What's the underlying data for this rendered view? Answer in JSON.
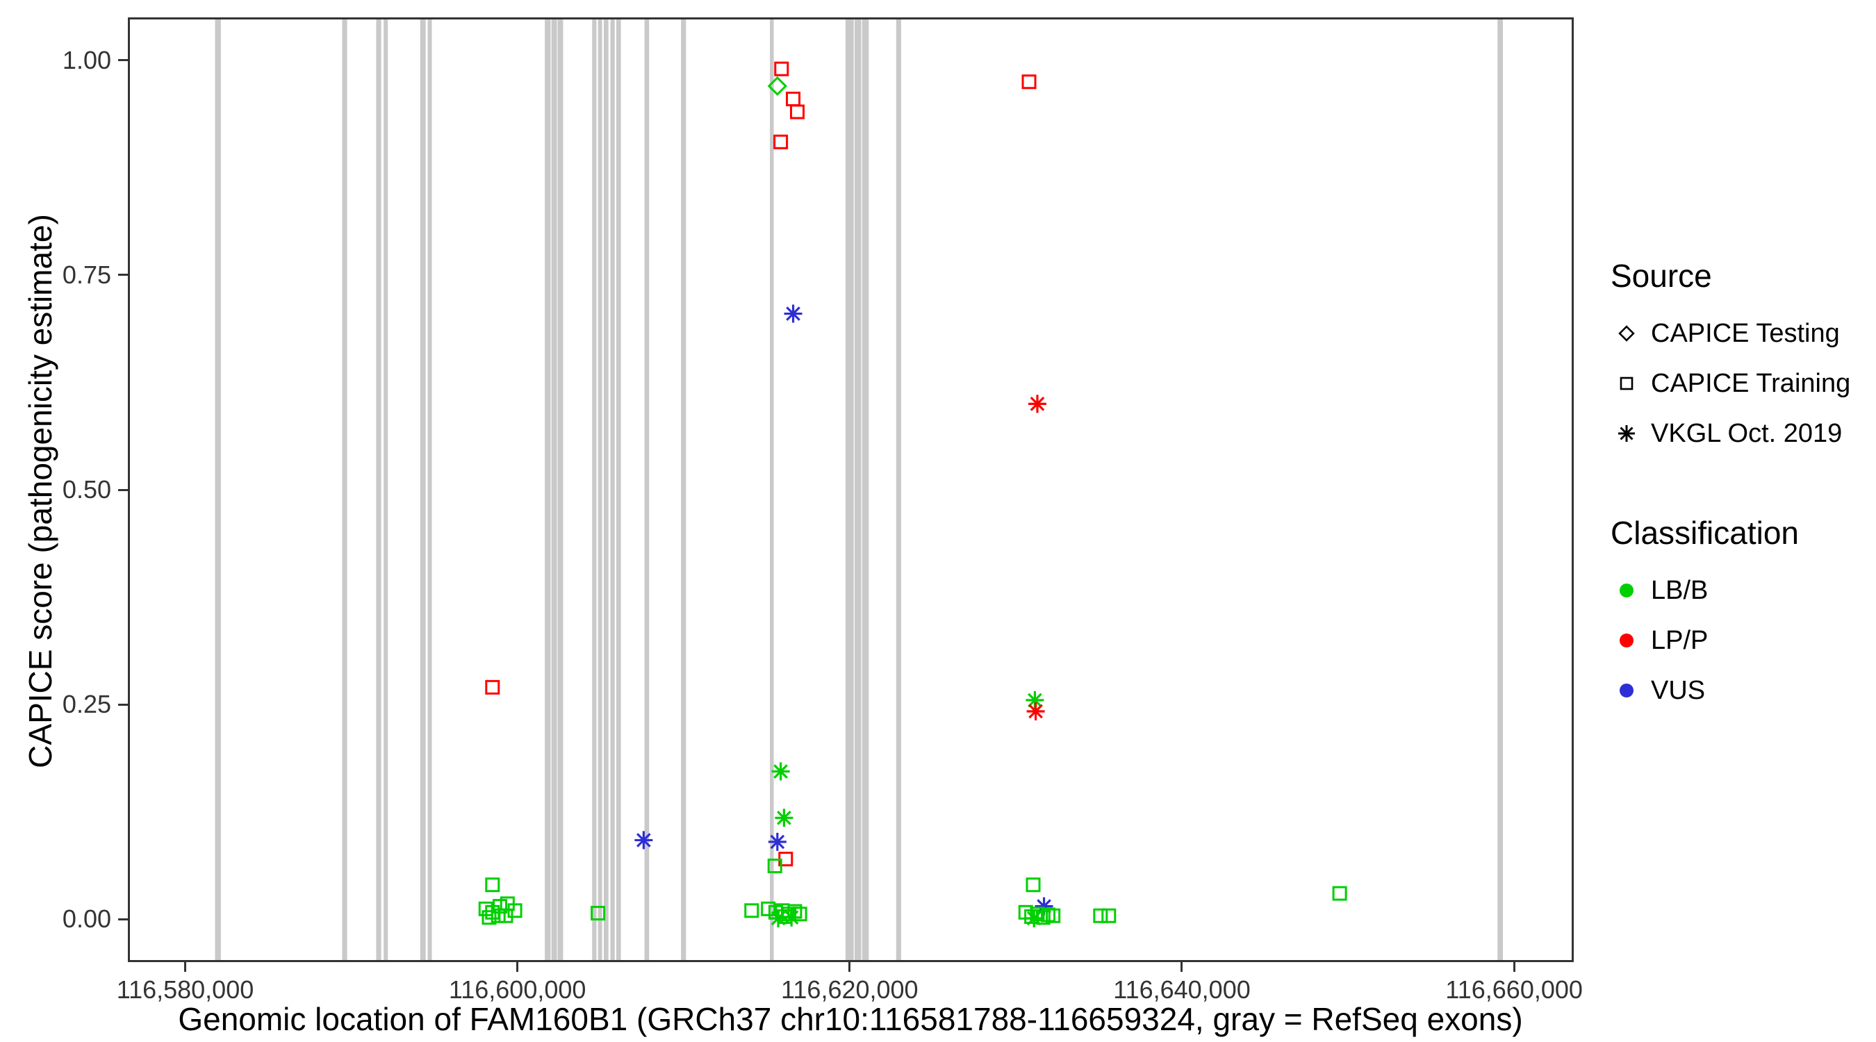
{
  "chart_data": {
    "type": "scatter",
    "title": "",
    "xlabel": "Genomic location of FAM160B1 (GRCh37 chr10:116581788-116659324, gray = RefSeq exons)",
    "ylabel": "CAPICE score (pathogenicity estimate)",
    "xlim": [
      116576550,
      116663590
    ],
    "ylim": [
      -0.05,
      1.05
    ],
    "grid": false,
    "x_ticks": [
      {
        "value": 116580000,
        "label": "116,580,000"
      },
      {
        "value": 116600000,
        "label": "116,600,000"
      },
      {
        "value": 116620000,
        "label": "116,620,000"
      },
      {
        "value": 116640000,
        "label": "116,640,000"
      },
      {
        "value": 116660000,
        "label": "116,660,000"
      }
    ],
    "y_ticks": [
      {
        "value": 0.0,
        "label": "0.00"
      },
      {
        "value": 0.25,
        "label": "0.25"
      },
      {
        "value": 0.5,
        "label": "0.50"
      },
      {
        "value": 0.75,
        "label": "0.75"
      },
      {
        "value": 1.0,
        "label": "1.00"
      }
    ],
    "colors": {
      "LB/B": "#00CF00",
      "LP/P": "#FF0000",
      "VUS": "#2E2ED6",
      "exon": "#C9C9C9",
      "legend_symbol": "#000000",
      "axis": "#333333"
    },
    "exons": [
      {
        "start": 116581800,
        "end": 116582150
      },
      {
        "start": 116589450,
        "end": 116589750
      },
      {
        "start": 116591500,
        "end": 116591800
      },
      {
        "start": 116591950,
        "end": 116592200
      },
      {
        "start": 116594150,
        "end": 116594480
      },
      {
        "start": 116594600,
        "end": 116594850
      },
      {
        "start": 116601650,
        "end": 116602000
      },
      {
        "start": 116602050,
        "end": 116602380
      },
      {
        "start": 116602420,
        "end": 116602750
      },
      {
        "start": 116604500,
        "end": 116604760
      },
      {
        "start": 116604850,
        "end": 116605100
      },
      {
        "start": 116605200,
        "end": 116605480
      },
      {
        "start": 116605600,
        "end": 116605860
      },
      {
        "start": 116605950,
        "end": 116606230
      },
      {
        "start": 116607650,
        "end": 116607930
      },
      {
        "start": 116609850,
        "end": 116610150
      },
      {
        "start": 116615200,
        "end": 116615430
      },
      {
        "start": 116619750,
        "end": 116620250
      },
      {
        "start": 116620300,
        "end": 116620700
      },
      {
        "start": 116620750,
        "end": 116621150
      },
      {
        "start": 116622800,
        "end": 116623100
      },
      {
        "start": 116659000,
        "end": 116659324
      }
    ],
    "points": [
      {
        "x": 116615900,
        "y": 0.99,
        "source": "CAPICE Training",
        "class": "LP/P"
      },
      {
        "x": 116615650,
        "y": 0.97,
        "source": "CAPICE Testing",
        "class": "LB/B"
      },
      {
        "x": 116616600,
        "y": 0.955,
        "source": "CAPICE Training",
        "class": "LP/P"
      },
      {
        "x": 116616850,
        "y": 0.94,
        "source": "CAPICE Training",
        "class": "LP/P"
      },
      {
        "x": 116615850,
        "y": 0.905,
        "source": "CAPICE Training",
        "class": "LP/P"
      },
      {
        "x": 116630800,
        "y": 0.975,
        "source": "CAPICE Training",
        "class": "LP/P"
      },
      {
        "x": 116616600,
        "y": 0.705,
        "source": "VKGL Oct. 2019",
        "class": "VUS"
      },
      {
        "x": 116631300,
        "y": 0.6,
        "source": "VKGL Oct. 2019",
        "class": "LP/P"
      },
      {
        "x": 116598500,
        "y": 0.27,
        "source": "CAPICE Training",
        "class": "LP/P"
      },
      {
        "x": 116631150,
        "y": 0.255,
        "source": "VKGL Oct. 2019",
        "class": "LB/B"
      },
      {
        "x": 116631200,
        "y": 0.242,
        "source": "VKGL Oct. 2019",
        "class": "LP/P"
      },
      {
        "x": 116615850,
        "y": 0.172,
        "source": "VKGL Oct. 2019",
        "class": "LB/B"
      },
      {
        "x": 116616050,
        "y": 0.118,
        "source": "VKGL Oct. 2019",
        "class": "LB/B"
      },
      {
        "x": 116607600,
        "y": 0.092,
        "source": "VKGL Oct. 2019",
        "class": "VUS"
      },
      {
        "x": 116615650,
        "y": 0.09,
        "source": "VKGL Oct. 2019",
        "class": "VUS"
      },
      {
        "x": 116616150,
        "y": 0.07,
        "source": "CAPICE Training",
        "class": "LP/P"
      },
      {
        "x": 116615500,
        "y": 0.062,
        "source": "CAPICE Training",
        "class": "LB/B"
      },
      {
        "x": 116598500,
        "y": 0.04,
        "source": "CAPICE Training",
        "class": "LB/B"
      },
      {
        "x": 116598100,
        "y": 0.012,
        "source": "CAPICE Training",
        "class": "LB/B"
      },
      {
        "x": 116598500,
        "y": 0.008,
        "source": "CAPICE Training",
        "class": "LB/B"
      },
      {
        "x": 116598950,
        "y": 0.015,
        "source": "CAPICE Training",
        "class": "LB/B"
      },
      {
        "x": 116599400,
        "y": 0.018,
        "source": "CAPICE Training",
        "class": "LB/B"
      },
      {
        "x": 116599850,
        "y": 0.01,
        "source": "CAPICE Training",
        "class": "LB/B"
      },
      {
        "x": 116598300,
        "y": 0.002,
        "source": "CAPICE Training",
        "class": "LB/B"
      },
      {
        "x": 116598850,
        "y": 0.004,
        "source": "CAPICE Training",
        "class": "LB/B"
      },
      {
        "x": 116599300,
        "y": 0.004,
        "source": "CAPICE Training",
        "class": "LB/B"
      },
      {
        "x": 116604850,
        "y": 0.007,
        "source": "CAPICE Training",
        "class": "LB/B"
      },
      {
        "x": 116614100,
        "y": 0.01,
        "source": "CAPICE Training",
        "class": "LB/B"
      },
      {
        "x": 116615100,
        "y": 0.012,
        "source": "CAPICE Training",
        "class": "LB/B"
      },
      {
        "x": 116615550,
        "y": 0.008,
        "source": "CAPICE Training",
        "class": "LB/B"
      },
      {
        "x": 116615950,
        "y": 0.01,
        "source": "CAPICE Training",
        "class": "LB/B"
      },
      {
        "x": 116616350,
        "y": 0.006,
        "source": "CAPICE Training",
        "class": "LB/B"
      },
      {
        "x": 116616700,
        "y": 0.009,
        "source": "CAPICE Training",
        "class": "LB/B"
      },
      {
        "x": 116617000,
        "y": 0.006,
        "source": "CAPICE Training",
        "class": "LB/B"
      },
      {
        "x": 116616100,
        "y": 0.003,
        "source": "CAPICE Training",
        "class": "LB/B"
      },
      {
        "x": 116615700,
        "y": 0.001,
        "source": "VKGL Oct. 2019",
        "class": "LB/B"
      },
      {
        "x": 116616500,
        "y": 0.002,
        "source": "VKGL Oct. 2019",
        "class": "LB/B"
      },
      {
        "x": 116631050,
        "y": 0.04,
        "source": "CAPICE Training",
        "class": "LB/B"
      },
      {
        "x": 116631700,
        "y": 0.015,
        "source": "VKGL Oct. 2019",
        "class": "VUS"
      },
      {
        "x": 116630600,
        "y": 0.008,
        "source": "CAPICE Training",
        "class": "LB/B"
      },
      {
        "x": 116630950,
        "y": 0.003,
        "source": "CAPICE Training",
        "class": "LB/B"
      },
      {
        "x": 116631300,
        "y": 0.006,
        "source": "CAPICE Training",
        "class": "LB/B"
      },
      {
        "x": 116631650,
        "y": 0.002,
        "source": "CAPICE Training",
        "class": "LB/B"
      },
      {
        "x": 116631950,
        "y": 0.005,
        "source": "CAPICE Training",
        "class": "LB/B"
      },
      {
        "x": 116632250,
        "y": 0.004,
        "source": "CAPICE Training",
        "class": "LB/B"
      },
      {
        "x": 116631100,
        "y": 0.001,
        "source": "VKGL Oct. 2019",
        "class": "LB/B"
      },
      {
        "x": 116635100,
        "y": 0.004,
        "source": "CAPICE Training",
        "class": "LB/B"
      },
      {
        "x": 116635600,
        "y": 0.004,
        "source": "CAPICE Training",
        "class": "LB/B"
      },
      {
        "x": 116649500,
        "y": 0.03,
        "source": "CAPICE Training",
        "class": "LB/B"
      }
    ],
    "legend": {
      "source": {
        "title": "Source",
        "items": [
          {
            "label": "CAPICE Testing",
            "shape": "diamond"
          },
          {
            "label": "CAPICE Training",
            "shape": "square"
          },
          {
            "label": "VKGL Oct. 2019",
            "shape": "asterisk"
          }
        ]
      },
      "classification": {
        "title": "Classification",
        "items": [
          {
            "label": "LB/B",
            "class": "LB/B"
          },
          {
            "label": "LP/P",
            "class": "LP/P"
          },
          {
            "label": "VUS",
            "class": "VUS"
          }
        ]
      }
    }
  }
}
